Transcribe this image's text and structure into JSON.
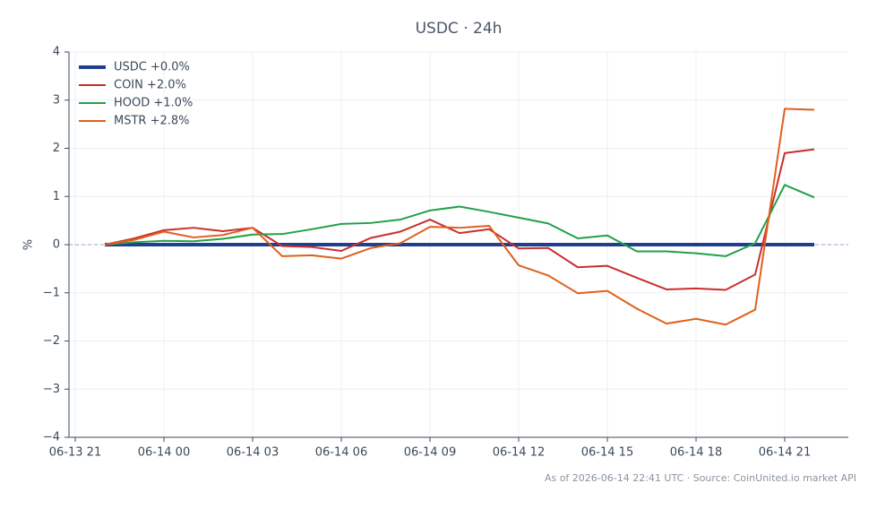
{
  "chart_data": {
    "type": "line",
    "title": "USDC · 24h",
    "ylabel": "%",
    "footnote": "As of 2026-06-14 22:41 UTC · Source: CoinUnited.io market API",
    "x": [
      "06-13 22",
      "06-13 23",
      "06-14 00",
      "06-14 01",
      "06-14 02",
      "06-14 03",
      "06-14 04",
      "06-14 05",
      "06-14 06",
      "06-14 07",
      "06-14 08",
      "06-14 09",
      "06-14 10",
      "06-14 11",
      "06-14 12",
      "06-14 13",
      "06-14 14",
      "06-14 15",
      "06-14 16",
      "06-14 17",
      "06-14 18",
      "06-14 19",
      "06-14 20",
      "06-14 21",
      "06-14 22"
    ],
    "xlim": [
      "06-13 21",
      "06-14 23"
    ],
    "xticks": [
      "06-13 21",
      "06-14 00",
      "06-14 03",
      "06-14 06",
      "06-14 09",
      "06-14 12",
      "06-14 15",
      "06-14 18",
      "06-14 21"
    ],
    "ylim": [
      -4,
      4
    ],
    "yticks": [
      {
        "value": -4,
        "label": "−4"
      },
      {
        "value": -3,
        "label": "−3"
      },
      {
        "value": -2,
        "label": "−2"
      },
      {
        "value": -1,
        "label": "−1"
      },
      0,
      1,
      2,
      3,
      4
    ],
    "grid": true,
    "legend": "upper left",
    "series": [
      {
        "name": "USDC +0.0%",
        "color": "#1f3f8f",
        "values": [
          0,
          0,
          0,
          0,
          0,
          0,
          0,
          0,
          0,
          0,
          0,
          0,
          0,
          0,
          0,
          0,
          0,
          0,
          0,
          0,
          0,
          0,
          0,
          0,
          0
        ]
      },
      {
        "name": "COIN +2.0%",
        "color": "#c8302e",
        "values": [
          0,
          0.13,
          0.3,
          0.35,
          0.28,
          0.35,
          -0.03,
          -0.05,
          -0.13,
          0.14,
          0.27,
          0.52,
          0.24,
          0.32,
          -0.08,
          -0.07,
          -0.47,
          -0.44,
          -0.69,
          -0.93,
          -0.91,
          -0.94,
          -0.62,
          1.9,
          1.98
        ]
      },
      {
        "name": "HOOD +1.0%",
        "color": "#22a04a",
        "values": [
          0,
          0.05,
          0.08,
          0.07,
          0.12,
          0.21,
          0.22,
          0.32,
          0.43,
          0.45,
          0.52,
          0.71,
          0.79,
          0.68,
          0.56,
          0.44,
          0.13,
          0.19,
          -0.14,
          -0.14,
          -0.18,
          -0.24,
          0.03,
          1.24,
          0.98
        ]
      },
      {
        "name": "MSTR +2.8%",
        "color": "#e0601e",
        "values": [
          0,
          0.1,
          0.27,
          0.15,
          0.2,
          0.35,
          -0.24,
          -0.22,
          -0.29,
          -0.07,
          0.03,
          0.37,
          0.35,
          0.39,
          -0.43,
          -0.64,
          -1.01,
          -0.96,
          -1.33,
          -1.64,
          -1.54,
          -1.66,
          -1.35,
          2.82,
          2.8
        ]
      }
    ]
  }
}
